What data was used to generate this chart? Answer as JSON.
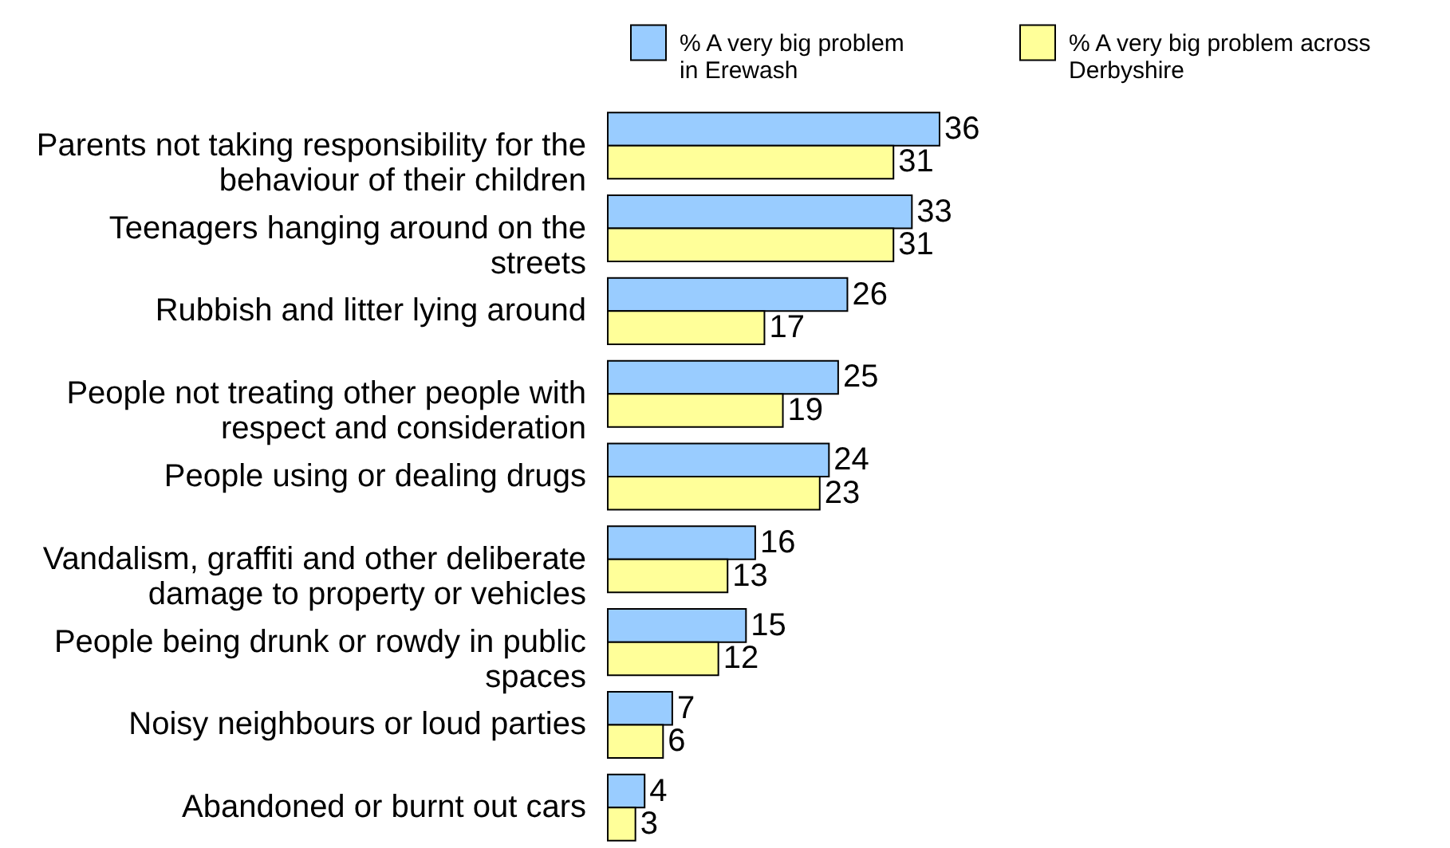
{
  "chart_data": {
    "type": "bar",
    "orientation": "horizontal",
    "categories": [
      "Parents not taking responsibility for the behaviour of their children",
      "Teenagers hanging around on the streets",
      "Rubbish and litter lying around",
      "People not treating other people with respect and consideration",
      "People using or dealing drugs",
      "Vandalism, graffiti and other deliberate damage to property or vehicles",
      "People being drunk or rowdy in public spaces",
      "Noisy neighbours or loud parties",
      "Abandoned or burnt out cars"
    ],
    "series": [
      {
        "name": "% A very big problem in Erewash",
        "color": "#99ccff",
        "values": [
          36,
          33,
          26,
          25,
          24,
          16,
          15,
          7,
          4
        ]
      },
      {
        "name": "% A very big problem across Derbyshire",
        "color": "#ffff99",
        "values": [
          31,
          31,
          17,
          19,
          23,
          13,
          12,
          6,
          3
        ]
      }
    ],
    "data_labels": true,
    "legend": "top right",
    "tick_labels": "y"
  }
}
